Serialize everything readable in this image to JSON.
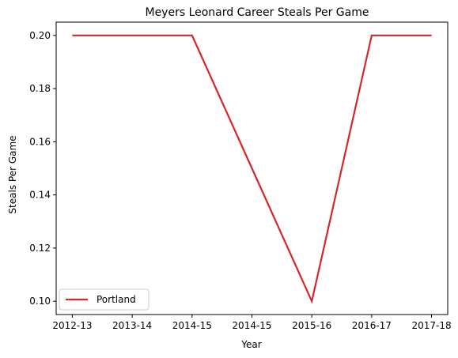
{
  "chart_data": {
    "type": "line",
    "title": "Meyers Leonard Career Steals Per Game",
    "xlabel": "Year",
    "ylabel": "Steals Per Game",
    "categories": [
      "2012-13",
      "2013-14",
      "2014-15",
      "2014-15",
      "2015-16",
      "2016-17",
      "2017-18"
    ],
    "series": [
      {
        "name": "Portland",
        "color": "#d62728",
        "values": [
          0.2,
          0.2,
          0.2,
          0.15,
          0.1,
          0.2,
          0.2
        ]
      }
    ],
    "ylim": [
      0.095,
      0.205
    ],
    "yticks": [
      "0.10",
      "0.12",
      "0.14",
      "0.16",
      "0.18",
      "0.20"
    ],
    "grid": false,
    "legend_position": "lower-left"
  }
}
